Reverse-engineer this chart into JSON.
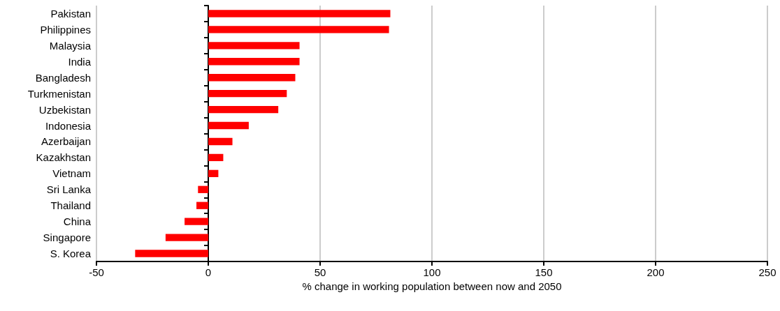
{
  "chart_data": {
    "type": "bar",
    "orientation": "horizontal",
    "xlabel": "% change in working population between now and 2050",
    "categories": [
      "Pakistan",
      "Philippines",
      "Malaysia",
      "India",
      "Bangladesh",
      "Turkmenistan",
      "Uzbekistan",
      "Indonesia",
      "Azerbaijan",
      "Kazakhstan",
      "Vietnam",
      "Sri Lanka",
      "Thailand",
      "China",
      "Singapore",
      "S. Korea"
    ],
    "values": [
      81.4,
      80.8,
      40.8,
      40.8,
      38.9,
      35.1,
      31.3,
      18.1,
      10.8,
      6.7,
      4.5,
      -4.6,
      -5.3,
      -10.6,
      -19.1,
      -32.7
    ],
    "color": "#ff0000",
    "xlim": [
      -50,
      250
    ],
    "xticks": [
      -50,
      0,
      50,
      100,
      150,
      200,
      250
    ],
    "grid": "x"
  }
}
